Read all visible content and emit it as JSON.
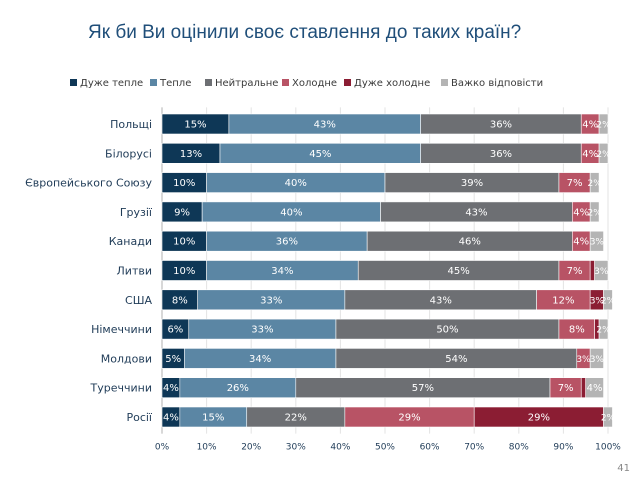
{
  "slide": {
    "title": "Як би Ви оцінили своє ставлення до таких країн?",
    "page_number": "41"
  },
  "colors": {
    "title": "#1f4e79",
    "series": [
      "#0e3756",
      "#5b86a4",
      "#6d6f73",
      "#b85365",
      "#8b1d33",
      "#b4b4b4"
    ]
  },
  "chart_data": {
    "type": "bar",
    "orientation": "horizontal",
    "stacked": true,
    "title": "Як би Ви оцінили своє ставлення до таких країн?",
    "legend_position": "top",
    "xlim": [
      0,
      100
    ],
    "x_ticks": [
      "0%",
      "10%",
      "20%",
      "30%",
      "40%",
      "50%",
      "60%",
      "70%",
      "80%",
      "90%",
      "100%"
    ],
    "categories": [
      "Польщі",
      "Білорусі",
      "Європейського Союзу",
      "Грузії",
      "Канади",
      "Литви",
      "США",
      "Німеччини",
      "Молдови",
      "Туреччини",
      "Росії"
    ],
    "series": [
      {
        "name": "Дуже тепле",
        "values": [
          15,
          13,
          10,
          9,
          10,
          10,
          8,
          6,
          5,
          4,
          4
        ],
        "labels": [
          "15%",
          "13%",
          "10%",
          "9%",
          "10%",
          "10%",
          "8%",
          "6%",
          "5%",
          "4%",
          "4%"
        ]
      },
      {
        "name": "Тепле",
        "values": [
          43,
          45,
          40,
          40,
          36,
          34,
          33,
          33,
          34,
          26,
          15
        ],
        "labels": [
          "43%",
          "45%",
          "40%",
          "40%",
          "36%",
          "34%",
          "33%",
          "33%",
          "34%",
          "26%",
          "15%"
        ]
      },
      {
        "name": "Нейтральне",
        "values": [
          36,
          36,
          39,
          43,
          46,
          45,
          43,
          50,
          54,
          57,
          22
        ],
        "labels": [
          "36%",
          "36%",
          "39%",
          "43%",
          "46%",
          "45%",
          "43%",
          "50%",
          "54%",
          "57%",
          "22%"
        ]
      },
      {
        "name": "Холодне",
        "values": [
          4,
          4,
          7,
          4,
          4,
          7,
          12,
          8,
          3,
          7,
          29
        ],
        "labels": [
          "4%",
          "4%",
          "7%",
          "4%",
          "4%",
          "7%",
          "12%",
          "8%",
          "3%",
          "7%",
          "29%"
        ]
      },
      {
        "name": "Дуже холодне",
        "values": [
          0,
          0,
          0,
          0,
          0,
          1,
          3,
          1,
          0,
          1,
          29
        ],
        "labels": [
          "",
          "",
          "",
          "",
          "",
          "",
          "3%",
          "",
          "",
          "",
          "29%"
        ]
      },
      {
        "name": "Важко відповісти",
        "values": [
          2,
          2,
          2,
          2,
          3,
          3,
          2,
          2,
          3,
          4,
          2
        ],
        "labels": [
          "2%",
          "2%",
          "2%",
          "2%",
          "3%",
          "3%",
          "2%",
          "2%",
          "3%",
          "4%",
          "2%"
        ]
      }
    ]
  }
}
